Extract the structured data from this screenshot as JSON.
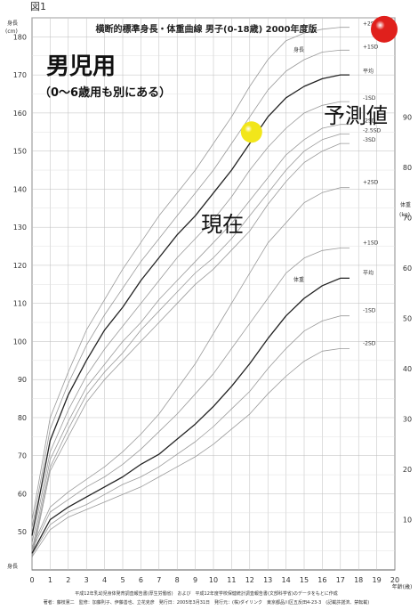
{
  "figure_label": "図1",
  "chart_data": {
    "type": "line",
    "title": "横断的標準身長・体重曲線 男子(0-18歳) 2000年度版",
    "main_note": "男児用",
    "sub_note": "（0〜6歳用も別にある）",
    "xlabel": "年齢(歳)",
    "x_ticks": [
      0,
      1,
      2,
      3,
      4,
      5,
      6,
      7,
      8,
      9,
      10,
      11,
      12,
      13,
      14,
      15,
      16,
      17,
      18,
      19,
      20
    ],
    "left_axis": {
      "label": "身長",
      "unit": "(cm)",
      "range": [
        40,
        185
      ],
      "ticks": [
        50,
        60,
        70,
        80,
        90,
        100,
        110,
        120,
        130,
        140,
        150,
        160,
        170,
        180
      ]
    },
    "right_axis": {
      "label": "体重",
      "unit": "(kg)",
      "range": [
        0,
        90
      ],
      "ticks": [
        10,
        20,
        30,
        40,
        50,
        60,
        70,
        80,
        90
      ]
    },
    "bottom_left_label": "身長",
    "height_label": "身長",
    "weight_label": "体重",
    "x": [
      0,
      1,
      2,
      3,
      4,
      5,
      6,
      7,
      8,
      9,
      10,
      11,
      12,
      13,
      14,
      15,
      16,
      17,
      17.5
    ],
    "height_series": [
      {
        "name": "+2SD",
        "values": [
          53,
          80,
          92,
          103,
          111,
          119,
          126,
          133,
          139,
          145,
          152,
          159,
          167,
          174,
          179,
          181,
          182,
          182.5,
          182.5
        ]
      },
      {
        "name": "+1SD",
        "values": [
          51,
          77,
          89,
          99,
          107,
          114,
          121,
          127,
          133,
          139,
          145,
          152,
          159,
          166,
          171,
          174,
          176,
          176.5,
          176.5
        ]
      },
      {
        "name": "平均",
        "values": [
          49,
          74,
          86,
          95,
          103,
          109,
          116,
          122,
          128,
          133,
          139,
          145,
          152,
          159,
          164,
          167,
          169,
          170,
          170
        ]
      },
      {
        "name": "-1SD",
        "values": [
          47,
          71,
          82,
          91,
          98,
          104,
          110,
          116,
          122,
          127,
          132,
          138,
          145,
          151,
          156,
          160,
          162,
          163,
          163
        ]
      },
      {
        "name": "-2SD",
        "values": [
          45,
          69,
          79,
          88,
          94,
          100,
          105,
          111,
          116,
          121,
          126,
          131,
          137,
          143,
          149,
          153,
          156,
          157,
          157
        ]
      },
      {
        "name": "-2.5SD",
        "values": [
          44,
          67,
          77,
          86,
          92,
          97,
          103,
          108,
          113,
          118,
          122,
          127,
          133,
          139,
          145,
          150,
          153,
          154.5,
          154.5
        ]
      },
      {
        "name": "-3SD",
        "values": [
          43,
          66,
          75,
          84,
          90,
          95,
          100,
          105,
          110,
          115,
          119,
          124,
          129,
          136,
          142,
          147,
          150,
          152,
          152
        ]
      }
    ],
    "weight_series": [
      {
        "name": "+2SD",
        "values": [
          4.5,
          12.5,
          15.5,
          18,
          20.5,
          23.5,
          27,
          31,
          36,
          41,
          47,
          53,
          59,
          65,
          69,
          73,
          75,
          76,
          76
        ]
      },
      {
        "name": "+1SD",
        "values": [
          4,
          11.5,
          14,
          16.5,
          18.5,
          21,
          24,
          27.5,
          31,
          35,
          39,
          44,
          49,
          54,
          59,
          62,
          63.5,
          64,
          64
        ]
      },
      {
        "name": "平均",
        "values": [
          3.3,
          10,
          12.5,
          14.5,
          16.5,
          18.5,
          21,
          23,
          26,
          29,
          32.5,
          36.5,
          41,
          46,
          50.5,
          54,
          56.5,
          58,
          58
        ]
      },
      {
        "name": "-1SD",
        "values": [
          3,
          9,
          11.5,
          13,
          15,
          17,
          18.5,
          20.5,
          23,
          25.5,
          28.5,
          32,
          35.5,
          40,
          44,
          47.5,
          49.5,
          50.5,
          50.5
        ]
      },
      {
        "name": "-2SD",
        "values": [
          2.6,
          8,
          10.5,
          12,
          13.5,
          15,
          16.5,
          18.5,
          20.5,
          22.5,
          25,
          28,
          31,
          35,
          38.5,
          41.5,
          43.5,
          44,
          44
        ]
      }
    ],
    "markers": [
      {
        "name": "現在",
        "age": 12.1,
        "height": 155,
        "color": "#f2e61a"
      },
      {
        "name": "予測値",
        "age": 20,
        "height": 182,
        "color": "#e0201c"
      }
    ]
  },
  "footer": {
    "line1": "平成12年乳幼児身体発育調査報告書(厚生労働省)　および　平成12年度学校保健統計調査報告書(文部科学省)のデータをもとに作成",
    "line2": "著者：藤枝憲二　監修：加藤則子、伊藤善也、立花克彦　発行日：2005年3月31日　発行元：(株)ダイリンク　東京都品川区五反田4-23-3　(記載許諾済、禁転載)"
  }
}
